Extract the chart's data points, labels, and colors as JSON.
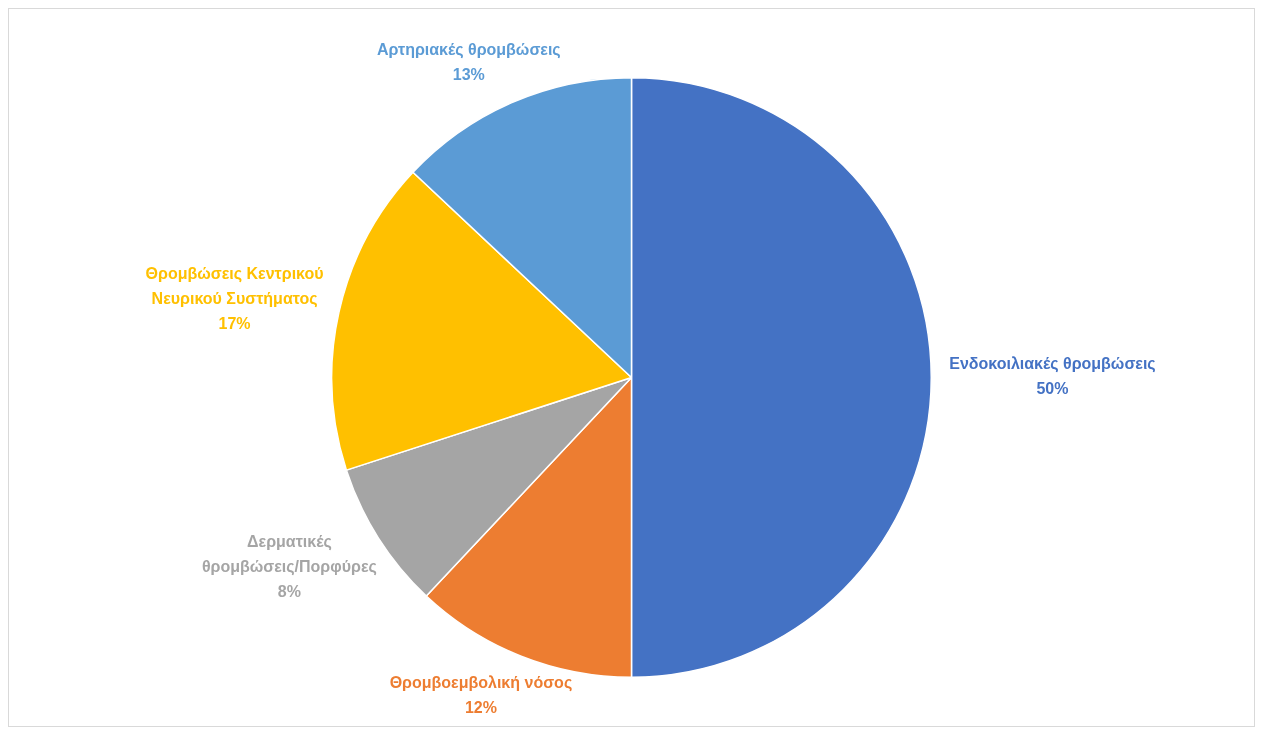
{
  "chart_data": {
    "type": "pie",
    "categories": [
      "Ενδοκοιλιακές θρομβώσεις",
      "Θρομβοεμβολική νόσος",
      "Δερματικές θρομβώσεις/Πορφύρες",
      "Θρομβώσεις Κεντρικού Νευρικού Συστήματος",
      "Αρτηριακές θρομβώσεις"
    ],
    "values": [
      50,
      12,
      8,
      17,
      13
    ],
    "value_labels": [
      "50%",
      "12%",
      "8%",
      "17%",
      "13%"
    ],
    "colors": [
      "#4472c4",
      "#ed7d31",
      "#a5a5a5",
      "#ffc000",
      "#5b9bd5"
    ],
    "legend": false
  }
}
